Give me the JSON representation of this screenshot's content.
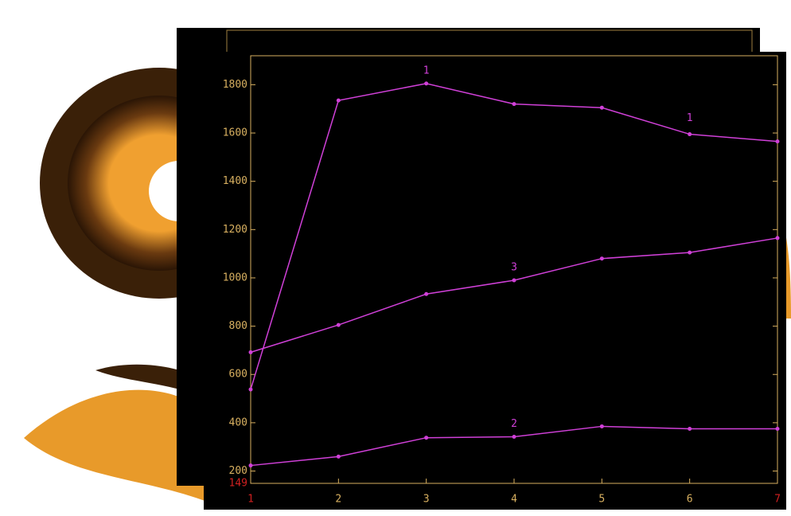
{
  "chart_data": {
    "type": "line",
    "x": [
      1,
      2,
      3,
      4,
      5,
      6,
      7
    ],
    "xlim": [
      1,
      7
    ],
    "xticks": [
      1,
      2,
      3,
      4,
      5,
      6,
      7
    ],
    "ylim": [
      149,
      1920
    ],
    "yticks": [
      149,
      200,
      400,
      600,
      800,
      1000,
      1200,
      1400,
      1600,
      1800
    ],
    "limit_color": "#d02020",
    "axis_color": "#d8b060",
    "series": [
      {
        "name": "1",
        "color": "#d040d8",
        "values": [
          538,
          1735,
          1805,
          1720,
          1705,
          1595,
          1565
        ]
      },
      {
        "name": "2",
        "color": "#d040d8",
        "values": [
          223,
          260,
          338,
          342,
          385,
          375,
          375
        ]
      },
      {
        "name": "3",
        "color": "#d040d8",
        "values": [
          692,
          805,
          933,
          990,
          1080,
          1105,
          1165
        ]
      }
    ]
  }
}
